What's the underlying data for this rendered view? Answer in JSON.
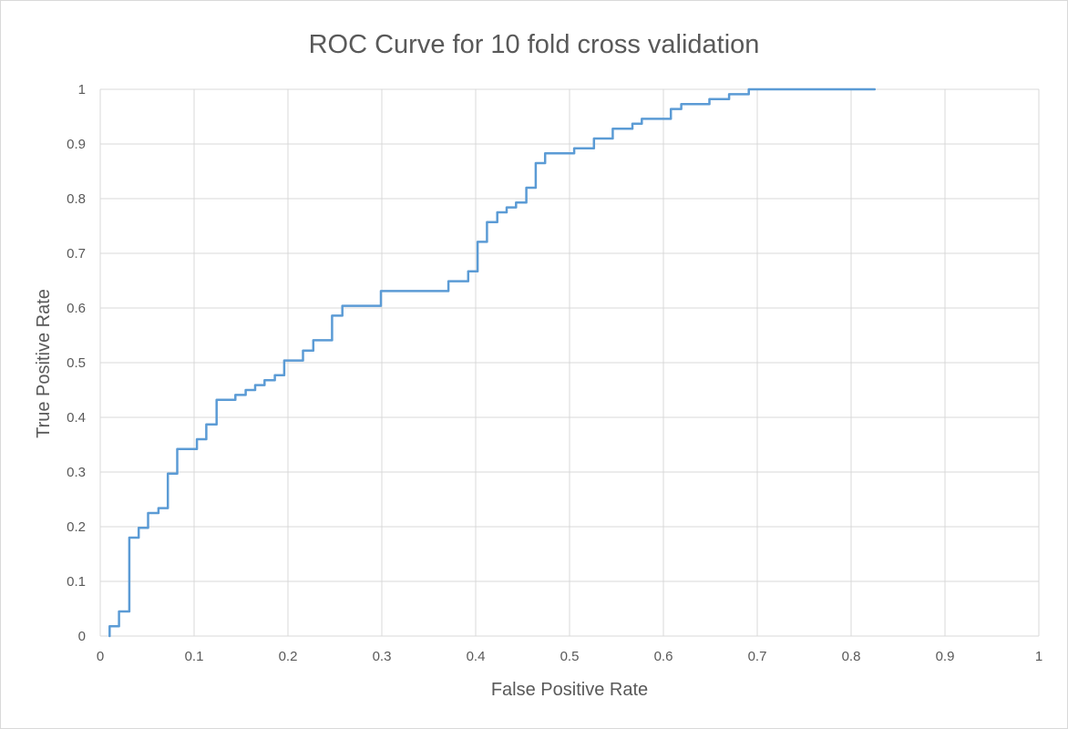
{
  "chart_data": {
    "type": "line",
    "title": "ROC Curve for 10 fold cross validation",
    "xlabel": "False Positive Rate",
    "ylabel": "True Positive Rate",
    "xlim": [
      0,
      1
    ],
    "ylim": [
      0,
      1
    ],
    "x_ticks": [
      "0",
      "0.1",
      "0.2",
      "0.3",
      "0.4",
      "0.5",
      "0.6",
      "0.7",
      "0.8",
      "0.9",
      "1"
    ],
    "y_ticks": [
      "0",
      "0.1",
      "0.2",
      "0.3",
      "0.4",
      "0.5",
      "0.6",
      "0.7",
      "0.8",
      "0.9",
      "1"
    ],
    "grid": true,
    "legend": "none",
    "line_style": "step",
    "series": [
      {
        "color": "#5b9bd5",
        "points": [
          [
            0.01,
            0.0
          ],
          [
            0.01,
            0.018
          ],
          [
            0.02,
            0.018
          ],
          [
            0.02,
            0.045
          ],
          [
            0.031,
            0.045
          ],
          [
            0.031,
            0.18
          ],
          [
            0.041,
            0.18
          ],
          [
            0.041,
            0.198
          ],
          [
            0.051,
            0.198
          ],
          [
            0.051,
            0.225
          ],
          [
            0.062,
            0.225
          ],
          [
            0.062,
            0.234
          ],
          [
            0.072,
            0.234
          ],
          [
            0.072,
            0.297
          ],
          [
            0.082,
            0.297
          ],
          [
            0.082,
            0.342
          ],
          [
            0.103,
            0.342
          ],
          [
            0.103,
            0.36
          ],
          [
            0.113,
            0.36
          ],
          [
            0.113,
            0.387
          ],
          [
            0.124,
            0.387
          ],
          [
            0.124,
            0.432
          ],
          [
            0.144,
            0.432
          ],
          [
            0.144,
            0.441
          ],
          [
            0.155,
            0.441
          ],
          [
            0.155,
            0.45
          ],
          [
            0.165,
            0.45
          ],
          [
            0.165,
            0.459
          ],
          [
            0.175,
            0.459
          ],
          [
            0.175,
            0.468
          ],
          [
            0.186,
            0.468
          ],
          [
            0.186,
            0.477
          ],
          [
            0.196,
            0.477
          ],
          [
            0.196,
            0.504
          ],
          [
            0.216,
            0.504
          ],
          [
            0.216,
            0.522
          ],
          [
            0.227,
            0.522
          ],
          [
            0.227,
            0.541
          ],
          [
            0.247,
            0.541
          ],
          [
            0.247,
            0.586
          ],
          [
            0.258,
            0.586
          ],
          [
            0.258,
            0.604
          ],
          [
            0.299,
            0.604
          ],
          [
            0.299,
            0.631
          ],
          [
            0.371,
            0.631
          ],
          [
            0.371,
            0.649
          ],
          [
            0.392,
            0.649
          ],
          [
            0.392,
            0.667
          ],
          [
            0.402,
            0.667
          ],
          [
            0.402,
            0.721
          ],
          [
            0.412,
            0.721
          ],
          [
            0.412,
            0.757
          ],
          [
            0.423,
            0.757
          ],
          [
            0.423,
            0.775
          ],
          [
            0.433,
            0.775
          ],
          [
            0.433,
            0.784
          ],
          [
            0.443,
            0.784
          ],
          [
            0.443,
            0.793
          ],
          [
            0.454,
            0.793
          ],
          [
            0.454,
            0.82
          ],
          [
            0.464,
            0.82
          ],
          [
            0.464,
            0.865
          ],
          [
            0.474,
            0.865
          ],
          [
            0.474,
            0.883
          ],
          [
            0.505,
            0.883
          ],
          [
            0.505,
            0.892
          ],
          [
            0.526,
            0.892
          ],
          [
            0.526,
            0.91
          ],
          [
            0.546,
            0.91
          ],
          [
            0.546,
            0.928
          ],
          [
            0.567,
            0.928
          ],
          [
            0.567,
            0.937
          ],
          [
            0.577,
            0.937
          ],
          [
            0.577,
            0.946
          ],
          [
            0.608,
            0.946
          ],
          [
            0.608,
            0.964
          ],
          [
            0.619,
            0.964
          ],
          [
            0.619,
            0.973
          ],
          [
            0.649,
            0.973
          ],
          [
            0.649,
            0.982
          ],
          [
            0.67,
            0.982
          ],
          [
            0.67,
            0.991
          ],
          [
            0.691,
            0.991
          ],
          [
            0.691,
            1.0
          ],
          [
            0.825,
            1.0
          ]
        ]
      }
    ]
  }
}
